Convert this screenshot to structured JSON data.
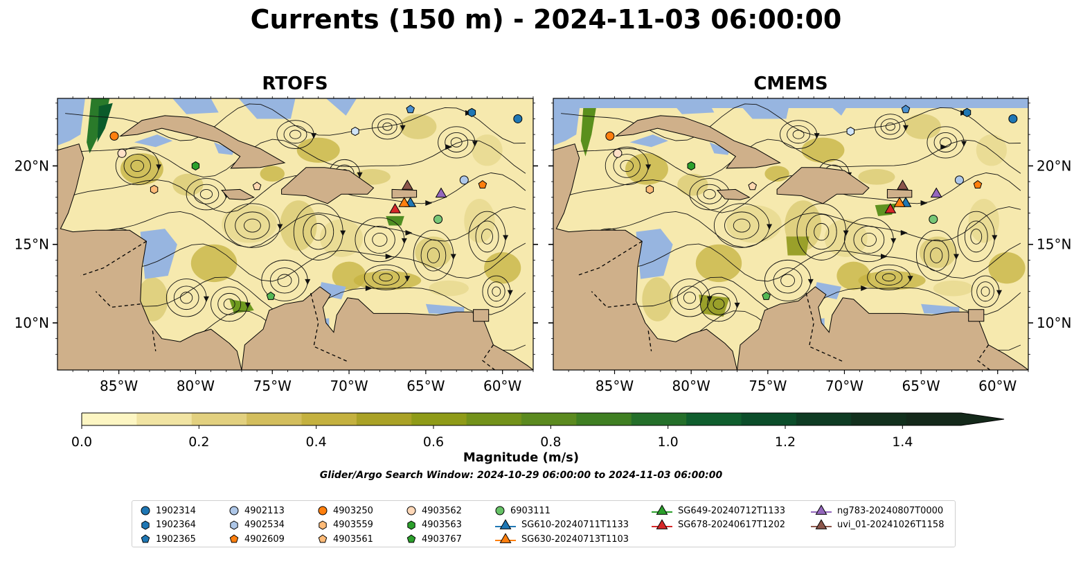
{
  "title": "Currents (150 m) - 2024-11-03 06:00:00",
  "panels": [
    {
      "title": "RTOFS"
    },
    {
      "title": "CMEMS"
    }
  ],
  "map": {
    "lon_range": [
      -89,
      -58
    ],
    "lat_range": [
      7,
      24.3
    ],
    "lon_ticks": [
      "85°W",
      "80°W",
      "75°W",
      "70°W",
      "65°W",
      "60°W"
    ],
    "lat_ticks": [
      "20°N",
      "15°N",
      "10°N"
    ],
    "colors": {
      "ocean": "#97b5e0",
      "land": "#cfb08a",
      "low": "#fdf6c3",
      "mid": "#c6b44e",
      "high": "#0b5b2a"
    }
  },
  "colorbar": {
    "label": "Magnitude (m/s)",
    "ticks": [
      "0.0",
      "0.2",
      "0.4",
      "0.6",
      "0.8",
      "1.0",
      "1.2",
      "1.4"
    ],
    "range": [
      0,
      1.5
    ],
    "extend": "max",
    "colors": [
      "#fdf6c3",
      "#f1e4a3",
      "#e2d07f",
      "#d3be5d",
      "#c4b13f",
      "#aaa226",
      "#8f9b18",
      "#73921a",
      "#5b8a1f",
      "#3f7f22",
      "#246f2a",
      "#0f5e2e",
      "#0b4d2a",
      "#0e3b23",
      "#12301d",
      "#14291a"
    ]
  },
  "search_window": "Glider/Argo Search Window: 2024-10-29 06:00:00 to 2024-11-03 06:00:00",
  "legend": {
    "columns": [
      [
        {
          "label": "1902314",
          "marker": "circle",
          "color": "#1f77b4"
        },
        {
          "label": "1902364",
          "marker": "hexagon",
          "color": "#1f77b4"
        },
        {
          "label": "1902365",
          "marker": "pentagon",
          "color": "#1f77b4"
        }
      ],
      [
        {
          "label": "4902113",
          "marker": "circle",
          "color": "#aec7e8"
        },
        {
          "label": "4902534",
          "marker": "hexagon",
          "color": "#aec7e8"
        },
        {
          "label": "4902609",
          "marker": "pentagon",
          "color": "#ff7f0e"
        }
      ],
      [
        {
          "label": "4903250",
          "marker": "circle",
          "color": "#ff7f0e"
        },
        {
          "label": "4903559",
          "marker": "hexagon",
          "color": "#ffbb78"
        },
        {
          "label": "4903561",
          "marker": "pentagon",
          "color": "#ffbb78"
        }
      ],
      [
        {
          "label": "4903562",
          "marker": "circle",
          "color": "#ffd8b8"
        },
        {
          "label": "4903563",
          "marker": "hexagon",
          "color": "#2ca02c"
        },
        {
          "label": "4903767",
          "marker": "pentagon",
          "color": "#2ca02c"
        }
      ],
      [
        {
          "label": "6903111",
          "marker": "circle",
          "color": "#66c266"
        },
        {
          "label": "SG610-20240711T1133",
          "marker": "triangle-line",
          "color": "#1f77b4"
        },
        {
          "label": "SG630-20240713T1103",
          "marker": "triangle-line",
          "color": "#ff7f0e"
        }
      ],
      [
        {
          "label": "SG649-20240712T1133",
          "marker": "triangle-line",
          "color": "#2ca02c"
        },
        {
          "label": "SG678-20240617T1202",
          "marker": "triangle-line",
          "color": "#d62728"
        }
      ],
      [
        {
          "label": "ng783-20240807T0000",
          "marker": "triangle-line",
          "color": "#9467bd"
        },
        {
          "label": "uvi_01-20241026T1158",
          "marker": "triangle-line",
          "color": "#8c564b"
        }
      ]
    ]
  },
  "markers": [
    {
      "lon": -59,
      "lat": 23.0,
      "shape": "circle",
      "color": "#1f77b4"
    },
    {
      "lon": -62,
      "lat": 23.4,
      "shape": "hexagon",
      "color": "#1f77b4"
    },
    {
      "lon": -66,
      "lat": 23.6,
      "shape": "pentagon",
      "color": "#4a90d0"
    },
    {
      "lon": -62.5,
      "lat": 19.1,
      "shape": "circle",
      "color": "#aec7e8"
    },
    {
      "lon": -69.6,
      "lat": 22.2,
      "shape": "hexagon",
      "color": "#d0e4f7"
    },
    {
      "lon": -61.3,
      "lat": 18.8,
      "shape": "pentagon",
      "color": "#ff7f0e"
    },
    {
      "lon": -85.3,
      "lat": 21.9,
      "shape": "circle",
      "color": "#ff7f0e"
    },
    {
      "lon": -82.7,
      "lat": 18.5,
      "shape": "hexagon",
      "color": "#ffbb78"
    },
    {
      "lon": -76,
      "lat": 18.7,
      "shape": "pentagon",
      "color": "#ffd8b0"
    },
    {
      "lon": -84.8,
      "lat": 20.8,
      "shape": "circle",
      "color": "#ffe0c6"
    },
    {
      "lon": -80,
      "lat": 20.0,
      "shape": "hexagon",
      "color": "#2ca02c"
    },
    {
      "lon": -75.1,
      "lat": 11.7,
      "shape": "pentagon",
      "color": "#55b855"
    },
    {
      "lon": -64.2,
      "lat": 16.6,
      "shape": "circle",
      "color": "#77c777"
    },
    {
      "lon": -66.0,
      "lat": 17.6,
      "shape": "triangle",
      "color": "#1f77b4"
    },
    {
      "lon": -66.4,
      "lat": 17.6,
      "shape": "triangle",
      "color": "#ff7f0e"
    },
    {
      "lon": -67.0,
      "lat": 17.2,
      "shape": "triangle",
      "color": "#d62728"
    },
    {
      "lon": -64.0,
      "lat": 18.2,
      "shape": "triangle",
      "color": "#9467bd"
    },
    {
      "lon": -66.2,
      "lat": 18.7,
      "shape": "triangle",
      "color": "#8c564b"
    }
  ]
}
